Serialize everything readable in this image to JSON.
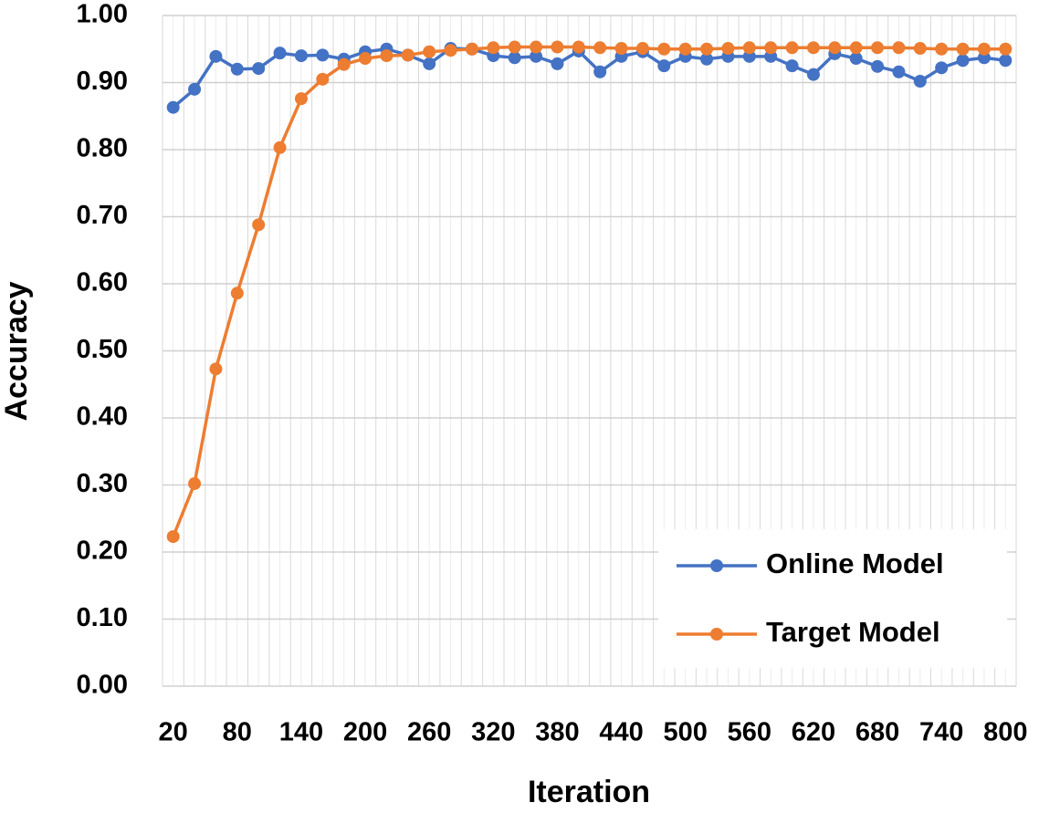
{
  "chart_data": {
    "type": "line",
    "x_label": "Iteration",
    "y_label": "Accuracy",
    "categories": [
      "20",
      null,
      null,
      "80",
      null,
      null,
      "140",
      null,
      null,
      "200",
      null,
      null,
      "260",
      null,
      null,
      "320",
      null,
      null,
      "380",
      null,
      null,
      "440",
      null,
      null,
      "500",
      null,
      null,
      "560",
      null,
      null,
      "620",
      null,
      null,
      "680",
      null,
      null,
      "740",
      null,
      null,
      "800"
    ],
    "series": [
      {
        "name": "Online Model",
        "color": "#4472c4",
        "values": [
          0.863,
          0.89,
          0.939,
          0.92,
          0.921,
          0.944,
          0.94,
          0.941,
          0.935,
          0.946,
          0.95,
          0.941,
          0.928,
          0.951,
          0.95,
          0.94,
          0.937,
          0.939,
          0.928,
          0.947,
          0.916,
          0.939,
          0.946,
          0.925,
          0.939,
          0.935,
          0.939,
          0.939,
          0.939,
          0.925,
          0.912,
          0.943,
          0.936,
          0.924,
          0.916,
          0.902,
          0.922,
          0.933,
          0.937,
          0.933
        ]
      },
      {
        "name": "Target Model",
        "color": "#ed7d31",
        "values": [
          0.223,
          0.302,
          0.473,
          0.586,
          0.688,
          0.803,
          0.876,
          0.905,
          0.927,
          0.936,
          0.94,
          0.941,
          0.946,
          0.948,
          0.95,
          0.952,
          0.953,
          0.953,
          0.953,
          0.953,
          0.952,
          0.951,
          0.951,
          0.95,
          0.95,
          0.95,
          0.951,
          0.952,
          0.952,
          0.952,
          0.952,
          0.952,
          0.952,
          0.952,
          0.952,
          0.951,
          0.95,
          0.95,
          0.95,
          0.95
        ]
      }
    ],
    "ylim": [
      0,
      1
    ],
    "yticks": [
      {
        "value": 0,
        "label": "0.00"
      },
      {
        "value": 0.1,
        "label": "0.10"
      },
      {
        "value": 0.2,
        "label": "0.20"
      },
      {
        "value": 0.3,
        "label": "0.30"
      },
      {
        "value": 0.4,
        "label": "0.40"
      },
      {
        "value": 0.5,
        "label": "0.50"
      },
      {
        "value": 0.6,
        "label": "0.60"
      },
      {
        "value": 0.7,
        "label": "0.70"
      },
      {
        "value": 0.8,
        "label": "0.80"
      },
      {
        "value": 0.9,
        "label": "0.90"
      },
      {
        "value": 1,
        "label": "1.00"
      }
    ],
    "grid": true,
    "legend": "lower right"
  }
}
